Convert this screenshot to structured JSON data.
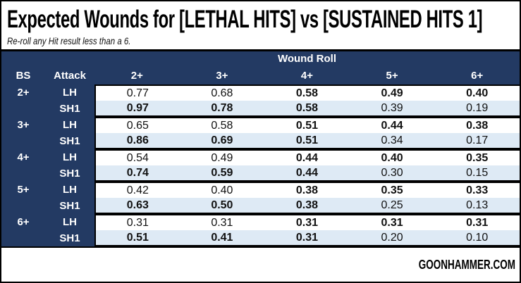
{
  "page": {
    "title": "Expected Wounds for [LETHAL HITS] vs [SUSTAINED HITS 1]",
    "subtitle": "Re-roll any Hit result less than a 6.",
    "footer": "GOONHAMMER.COM"
  },
  "colors": {
    "navy_header": "#233a63",
    "alt_row_blue": "#deeaf5",
    "border_black": "#000000",
    "header_text": "#ffffff"
  },
  "chart_data": {
    "type": "table",
    "title": "Expected Wounds for [LETHAL HITS] vs [SUSTAINED HITS 1]",
    "subtitle": "Re-roll any Hit result less than a 6.",
    "column_group_header": "Wound Roll",
    "columns": [
      "BS",
      "Attack",
      "2+",
      "3+",
      "4+",
      "5+",
      "6+"
    ],
    "wound_roll_columns": [
      "2+",
      "3+",
      "4+",
      "5+",
      "6+"
    ],
    "emphasis_rule": "higher value of LH vs SH1 per column rendered bold; ties bold in both rows",
    "groups": [
      {
        "bs": "2+",
        "rows": [
          {
            "attack": "LH",
            "values": [
              "0.77",
              "0.68",
              "0.58",
              "0.49",
              "0.40"
            ]
          },
          {
            "attack": "SH1",
            "values": [
              "0.97",
              "0.78",
              "0.58",
              "0.39",
              "0.19"
            ]
          }
        ]
      },
      {
        "bs": "3+",
        "rows": [
          {
            "attack": "LH",
            "values": [
              "0.65",
              "0.58",
              "0.51",
              "0.44",
              "0.38"
            ]
          },
          {
            "attack": "SH1",
            "values": [
              "0.86",
              "0.69",
              "0.51",
              "0.34",
              "0.17"
            ]
          }
        ]
      },
      {
        "bs": "4+",
        "rows": [
          {
            "attack": "LH",
            "values": [
              "0.54",
              "0.49",
              "0.44",
              "0.40",
              "0.35"
            ]
          },
          {
            "attack": "SH1",
            "values": [
              "0.74",
              "0.59",
              "0.44",
              "0.30",
              "0.15"
            ]
          }
        ]
      },
      {
        "bs": "5+",
        "rows": [
          {
            "attack": "LH",
            "values": [
              "0.42",
              "0.40",
              "0.38",
              "0.35",
              "0.33"
            ]
          },
          {
            "attack": "SH1",
            "values": [
              "0.63",
              "0.50",
              "0.38",
              "0.25",
              "0.13"
            ]
          }
        ]
      },
      {
        "bs": "6+",
        "rows": [
          {
            "attack": "LH",
            "values": [
              "0.31",
              "0.31",
              "0.31",
              "0.31",
              "0.31"
            ]
          },
          {
            "attack": "SH1",
            "values": [
              "0.51",
              "0.41",
              "0.31",
              "0.20",
              "0.10"
            ]
          }
        ]
      }
    ]
  }
}
